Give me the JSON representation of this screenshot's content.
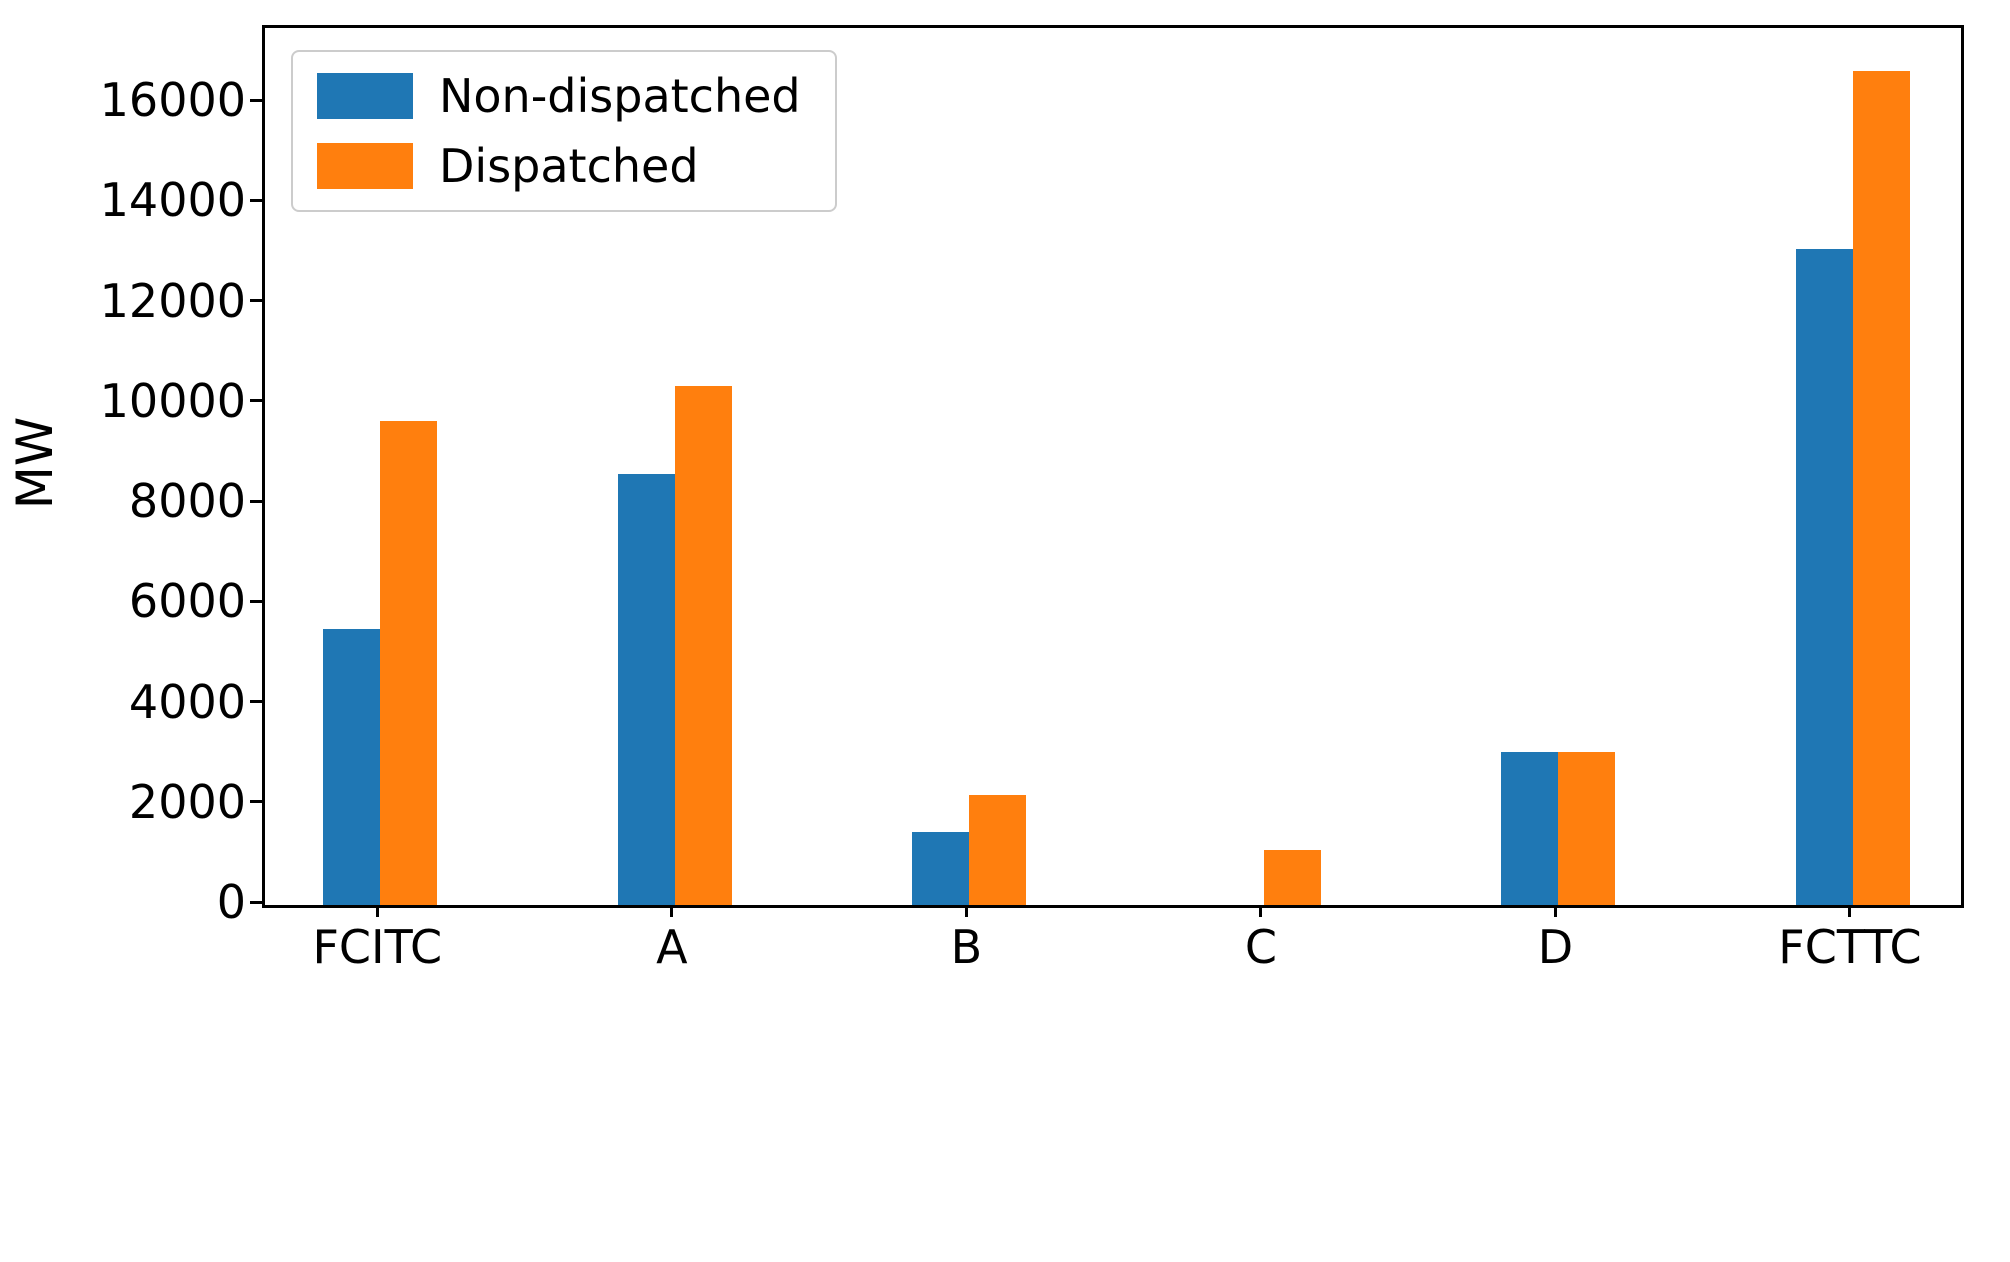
{
  "chart_data": {
    "type": "bar",
    "title": "",
    "xlabel": "",
    "ylabel": "MW",
    "categories": [
      "FCITC",
      "A",
      "B",
      "C",
      "D",
      "FCTTC"
    ],
    "series": [
      {
        "name": "Non-dispatched",
        "color": "#1f77b4",
        "values": [
          5500,
          8600,
          1450,
          0,
          3050,
          13100
        ]
      },
      {
        "name": "Dispatched",
        "color": "#ff7f0e",
        "values": [
          9650,
          10350,
          2200,
          1100,
          3050,
          16650
        ]
      }
    ],
    "ylim": [
      0,
      17500
    ],
    "yticks": [
      0,
      2000,
      4000,
      6000,
      8000,
      10000,
      12000,
      14000,
      16000
    ],
    "legend_position": "upper-left",
    "grid": false
  }
}
